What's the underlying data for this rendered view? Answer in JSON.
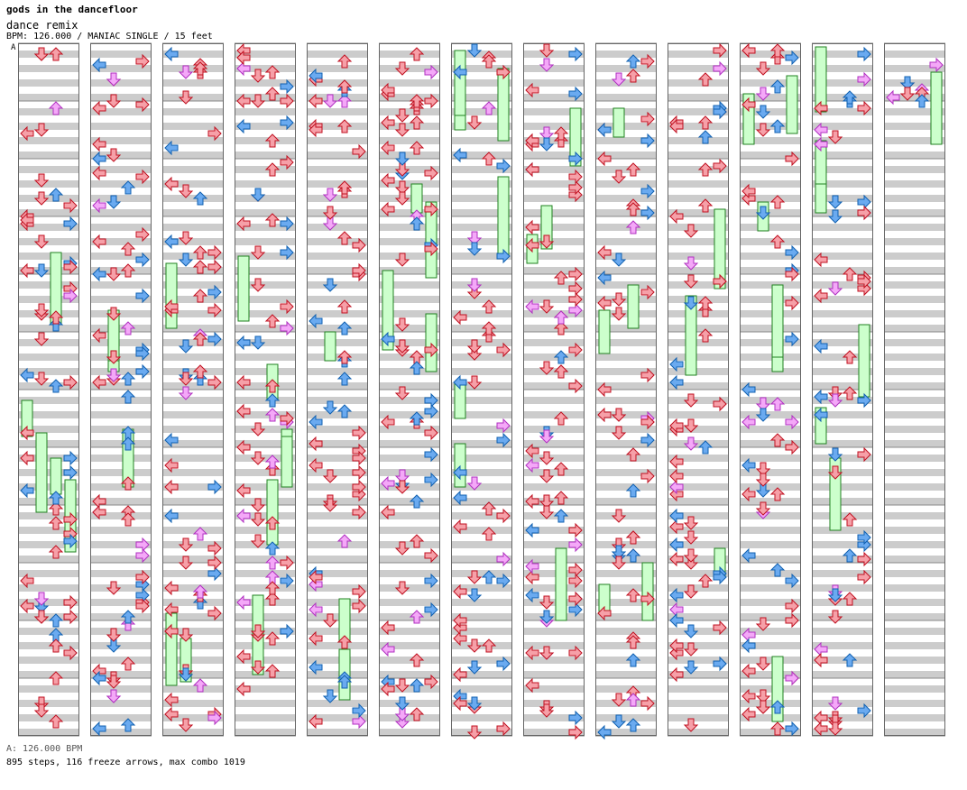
{
  "song": {
    "title": "gods in the dancefloor",
    "subtitle": "dance remix",
    "info": "BPM: 126.000 / MANIAC SINGLE / 15 feet",
    "marker": "A"
  },
  "footer": {
    "bpm": "A: 126.000 BPM",
    "stats": "895 steps, 116 freeze arrows, max combo 1019"
  },
  "colors": {
    "quarter": "#f6a0a8",
    "quarter_stroke": "#c01020",
    "eighth": "#6aaaf0",
    "eighth_stroke": "#1060b0",
    "sixteenth": "#f4a8f8",
    "sixteenth_stroke": "#b030c0",
    "freeze": "#ccffcc",
    "freeze_stroke": "#208020",
    "stripe": "#cccccc"
  },
  "chart_data": {
    "type": "step-chart",
    "columns_count": 13,
    "measures_per_column": 12,
    "total_steps": 895,
    "freeze_arrows": 116,
    "max_combo": 1019,
    "bpm": 126.0
  }
}
